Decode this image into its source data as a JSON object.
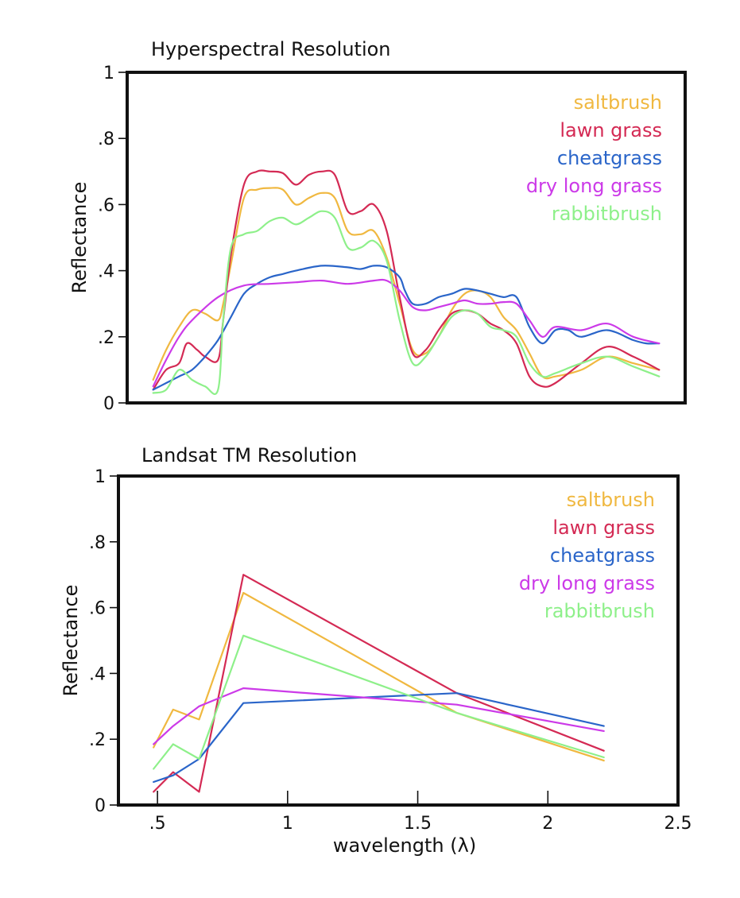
{
  "chart_data": [
    {
      "type": "line",
      "title": "Hyperspectral Resolution",
      "ylabel": "Reflectance",
      "xlabel": "",
      "xlim": [
        0.35,
        2.5
      ],
      "ylim": [
        0,
        1
      ],
      "grid": false,
      "legend_position": "top-right",
      "y_ticks": [
        {
          "value": 0,
          "label": "0"
        },
        {
          "value": 0.2,
          "label": ".2"
        },
        {
          "value": 0.4,
          "label": ".4"
        },
        {
          "value": 0.6,
          "label": ".6"
        },
        {
          "value": 0.8,
          "label": ".8"
        },
        {
          "value": 1,
          "label": "1"
        }
      ],
      "x_ticks": [],
      "series": [
        {
          "name": "saltbrush",
          "color": "#f0b840",
          "x": [
            0.45,
            0.5,
            0.55,
            0.6,
            0.65,
            0.7,
            0.72,
            0.75,
            0.8,
            0.85,
            0.9,
            0.95,
            1.0,
            1.05,
            1.1,
            1.15,
            1.2,
            1.25,
            1.3,
            1.35,
            1.4,
            1.45,
            1.5,
            1.55,
            1.6,
            1.65,
            1.7,
            1.75,
            1.8,
            1.85,
            1.9,
            1.95,
            2.0,
            2.1,
            2.2,
            2.3,
            2.4
          ],
          "y": [
            0.07,
            0.16,
            0.23,
            0.28,
            0.27,
            0.25,
            0.3,
            0.42,
            0.62,
            0.645,
            0.65,
            0.645,
            0.6,
            0.62,
            0.635,
            0.62,
            0.52,
            0.51,
            0.52,
            0.44,
            0.3,
            0.16,
            0.15,
            0.2,
            0.28,
            0.33,
            0.34,
            0.32,
            0.26,
            0.22,
            0.15,
            0.08,
            0.08,
            0.1,
            0.14,
            0.12,
            0.1
          ]
        },
        {
          "name": "lawn grass",
          "color": "#d42a54",
          "x": [
            0.45,
            0.5,
            0.55,
            0.58,
            0.62,
            0.65,
            0.7,
            0.72,
            0.75,
            0.8,
            0.85,
            0.9,
            0.95,
            1.0,
            1.05,
            1.1,
            1.15,
            1.2,
            1.25,
            1.3,
            1.35,
            1.4,
            1.45,
            1.5,
            1.55,
            1.6,
            1.65,
            1.7,
            1.75,
            1.8,
            1.85,
            1.9,
            1.95,
            2.0,
            2.1,
            2.2,
            2.3,
            2.4
          ],
          "y": [
            0.04,
            0.1,
            0.12,
            0.18,
            0.16,
            0.14,
            0.13,
            0.25,
            0.45,
            0.66,
            0.7,
            0.7,
            0.695,
            0.66,
            0.69,
            0.7,
            0.69,
            0.58,
            0.58,
            0.6,
            0.52,
            0.32,
            0.15,
            0.16,
            0.22,
            0.27,
            0.28,
            0.27,
            0.24,
            0.22,
            0.18,
            0.08,
            0.05,
            0.06,
            0.12,
            0.17,
            0.14,
            0.1
          ]
        },
        {
          "name": "cheatgrass",
          "color": "#2a65c9",
          "x": [
            0.45,
            0.5,
            0.55,
            0.6,
            0.65,
            0.7,
            0.75,
            0.8,
            0.85,
            0.9,
            0.95,
            1.0,
            1.1,
            1.2,
            1.25,
            1.3,
            1.35,
            1.4,
            1.42,
            1.45,
            1.5,
            1.55,
            1.6,
            1.65,
            1.7,
            1.75,
            1.8,
            1.85,
            1.9,
            1.95,
            2.0,
            2.05,
            2.1,
            2.2,
            2.3,
            2.35,
            2.4
          ],
          "y": [
            0.04,
            0.06,
            0.08,
            0.1,
            0.14,
            0.19,
            0.26,
            0.33,
            0.36,
            0.38,
            0.39,
            0.4,
            0.415,
            0.41,
            0.405,
            0.415,
            0.41,
            0.38,
            0.34,
            0.3,
            0.3,
            0.32,
            0.33,
            0.345,
            0.34,
            0.33,
            0.32,
            0.32,
            0.23,
            0.18,
            0.22,
            0.22,
            0.2,
            0.22,
            0.19,
            0.18,
            0.18
          ]
        },
        {
          "name": "dry long grass",
          "color": "#cc3ae8",
          "x": [
            0.45,
            0.5,
            0.55,
            0.6,
            0.7,
            0.8,
            0.9,
            1.0,
            1.1,
            1.2,
            1.3,
            1.35,
            1.4,
            1.45,
            1.5,
            1.55,
            1.6,
            1.65,
            1.7,
            1.75,
            1.8,
            1.85,
            1.9,
            1.95,
            2.0,
            2.1,
            2.2,
            2.3,
            2.4
          ],
          "y": [
            0.05,
            0.13,
            0.2,
            0.25,
            0.32,
            0.355,
            0.36,
            0.365,
            0.37,
            0.36,
            0.37,
            0.37,
            0.34,
            0.29,
            0.28,
            0.29,
            0.3,
            0.31,
            0.3,
            0.3,
            0.305,
            0.3,
            0.25,
            0.2,
            0.23,
            0.22,
            0.24,
            0.2,
            0.18
          ]
        },
        {
          "name": "rabbitbrush",
          "color": "#8ef08a",
          "x": [
            0.45,
            0.5,
            0.55,
            0.6,
            0.65,
            0.7,
            0.72,
            0.75,
            0.8,
            0.85,
            0.9,
            0.95,
            1.0,
            1.05,
            1.1,
            1.15,
            1.2,
            1.25,
            1.3,
            1.35,
            1.4,
            1.45,
            1.5,
            1.55,
            1.6,
            1.65,
            1.7,
            1.75,
            1.8,
            1.85,
            1.9,
            1.95,
            2.0,
            2.1,
            2.2,
            2.3,
            2.4
          ],
          "y": [
            0.03,
            0.04,
            0.1,
            0.07,
            0.05,
            0.04,
            0.25,
            0.47,
            0.51,
            0.52,
            0.55,
            0.56,
            0.54,
            0.56,
            0.58,
            0.56,
            0.47,
            0.47,
            0.49,
            0.43,
            0.25,
            0.12,
            0.14,
            0.2,
            0.26,
            0.28,
            0.27,
            0.23,
            0.22,
            0.2,
            0.12,
            0.08,
            0.09,
            0.12,
            0.14,
            0.11,
            0.08
          ]
        }
      ]
    },
    {
      "type": "line",
      "title": "Landsat TM Resolution",
      "ylabel": "Reflectance",
      "xlabel": "wavelength (λ)",
      "xlim": [
        0.35,
        2.5
      ],
      "ylim": [
        0,
        1
      ],
      "grid": false,
      "legend_position": "top-right",
      "y_ticks": [
        {
          "value": 0,
          "label": "0"
        },
        {
          "value": 0.2,
          "label": ".2"
        },
        {
          "value": 0.4,
          "label": ".4"
        },
        {
          "value": 0.6,
          "label": ".6"
        },
        {
          "value": 0.8,
          "label": ".8"
        },
        {
          "value": 1,
          "label": "1"
        }
      ],
      "x_ticks": [
        {
          "value": 0.5,
          "label": ".5"
        },
        {
          "value": 1,
          "label": "1"
        },
        {
          "value": 1.5,
          "label": "1.5"
        },
        {
          "value": 2,
          "label": "2"
        },
        {
          "value": 2.5,
          "label": "2.5"
        }
      ],
      "series": [
        {
          "name": "saltbrush",
          "color": "#f0b840",
          "x": [
            0.485,
            0.56,
            0.66,
            0.83,
            1.65,
            2.215
          ],
          "y": [
            0.175,
            0.29,
            0.26,
            0.645,
            0.28,
            0.135
          ]
        },
        {
          "name": "lawn grass",
          "color": "#d42a54",
          "x": [
            0.485,
            0.56,
            0.66,
            0.83,
            1.65,
            2.215
          ],
          "y": [
            0.04,
            0.1,
            0.04,
            0.7,
            0.34,
            0.165
          ]
        },
        {
          "name": "cheatgrass",
          "color": "#2a65c9",
          "x": [
            0.485,
            0.56,
            0.66,
            0.83,
            1.65,
            2.215
          ],
          "y": [
            0.07,
            0.09,
            0.14,
            0.31,
            0.34,
            0.24
          ]
        },
        {
          "name": "dry long grass",
          "color": "#cc3ae8",
          "x": [
            0.485,
            0.56,
            0.66,
            0.83,
            1.65,
            2.215
          ],
          "y": [
            0.185,
            0.24,
            0.3,
            0.355,
            0.305,
            0.225
          ]
        },
        {
          "name": "rabbitbrush",
          "color": "#8ef08a",
          "x": [
            0.485,
            0.56,
            0.66,
            0.83,
            1.65,
            2.215
          ],
          "y": [
            0.11,
            0.185,
            0.14,
            0.515,
            0.28,
            0.145
          ]
        }
      ]
    }
  ]
}
